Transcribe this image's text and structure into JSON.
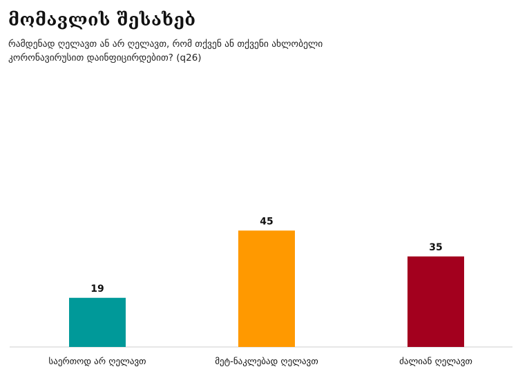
{
  "header": {
    "title": "მომავლის შესახებ",
    "subtitle": "რამდენად ღელავთ ან არ ღელავთ, რომ თქვენ ან თქვენი ახლობელი კორონავირუსით დაინფიცირდებით? (q26)"
  },
  "chart_data": {
    "type": "bar",
    "title": "მომავლის შესახებ",
    "subtitle": "რამდენად ღელავთ ან არ ღელავთ, რომ თქვენ ან თქვენი ახლობელი კორონავირუსით დაინფიცირდებით? (q26)",
    "categories": [
      "საერთოდ არ ღელავთ",
      "მეტ-ნაკლებად ღელავთ",
      "ძალიან ღელავთ"
    ],
    "values": [
      19,
      45,
      35
    ],
    "colors": [
      "#009999",
      "#FF9900",
      "#A3001E"
    ],
    "grid": false,
    "legend": "none"
  }
}
